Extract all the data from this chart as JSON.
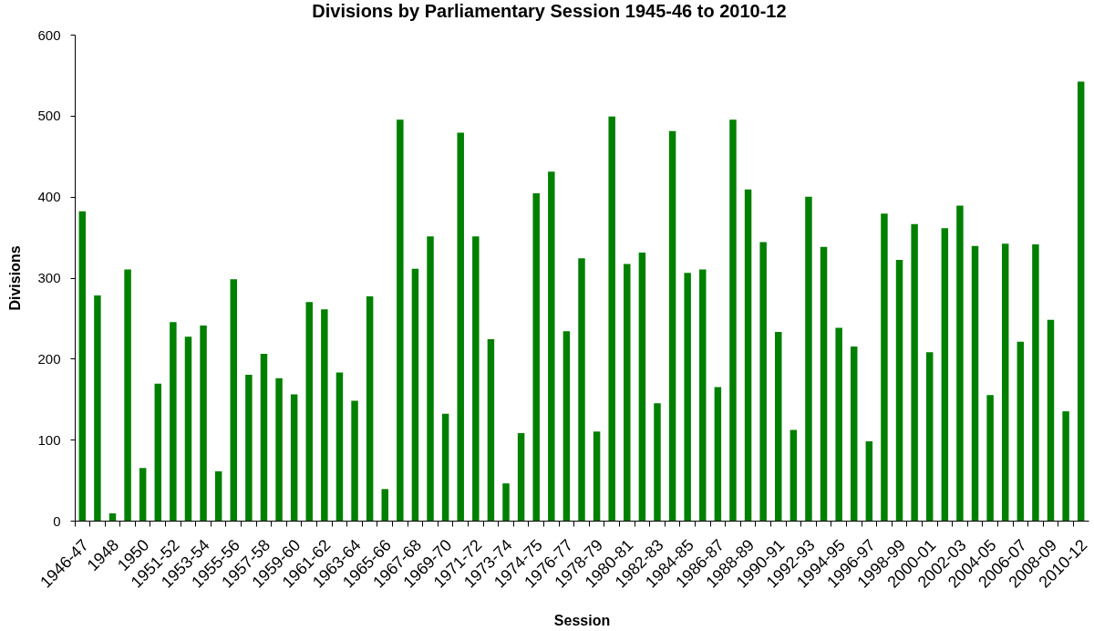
{
  "chart_data": {
    "type": "bar",
    "title": "Divisions by Parliamentary Session 1945-46 to 2010-12",
    "xlabel": "Session",
    "ylabel": "Divisions",
    "categories": [
      "1946-47",
      null,
      "1948",
      null,
      "1950",
      null,
      "1951-52",
      null,
      "1953-54",
      null,
      "1955-56",
      null,
      "1957-58",
      null,
      "1959-60",
      null,
      "1961-62",
      null,
      "1963-64",
      null,
      "1965-66",
      null,
      "1967-68",
      null,
      "1969-70",
      null,
      "1971-72",
      null,
      "1973-74",
      null,
      "1974-75",
      null,
      "1976-77",
      null,
      "1978-79",
      null,
      "1980-81",
      null,
      "1982-83",
      null,
      "1984-85",
      null,
      "1986-87",
      null,
      "1988-89",
      null,
      "1990-91",
      null,
      "1992-93",
      null,
      "1994-95",
      null,
      "1996-97",
      null,
      "1998-99",
      null,
      "2000-01",
      null,
      "2002-03",
      null,
      "2004-05",
      null,
      "2006-07",
      null,
      "2008-09",
      null,
      "2010-12"
    ],
    "values": [
      382,
      278,
      9,
      310,
      65,
      169,
      245,
      227,
      241,
      61,
      298,
      180,
      206,
      176,
      156,
      270,
      261,
      183,
      148,
      277,
      39,
      495,
      311,
      351,
      132,
      479,
      351,
      224,
      46,
      108,
      404,
      431,
      234,
      324,
      110,
      499,
      317,
      331,
      145,
      481,
      306,
      310,
      165,
      495,
      409,
      344,
      233,
      112,
      400,
      338,
      238,
      215,
      98,
      379,
      322,
      366,
      208,
      361,
      389,
      339,
      155,
      342,
      221,
      341,
      248,
      135,
      542
    ],
    "color": "#008000",
    "ylim": [
      0,
      600
    ],
    "yticks": [
      0,
      100,
      200,
      300,
      400,
      500,
      600
    ],
    "grid": false
  }
}
